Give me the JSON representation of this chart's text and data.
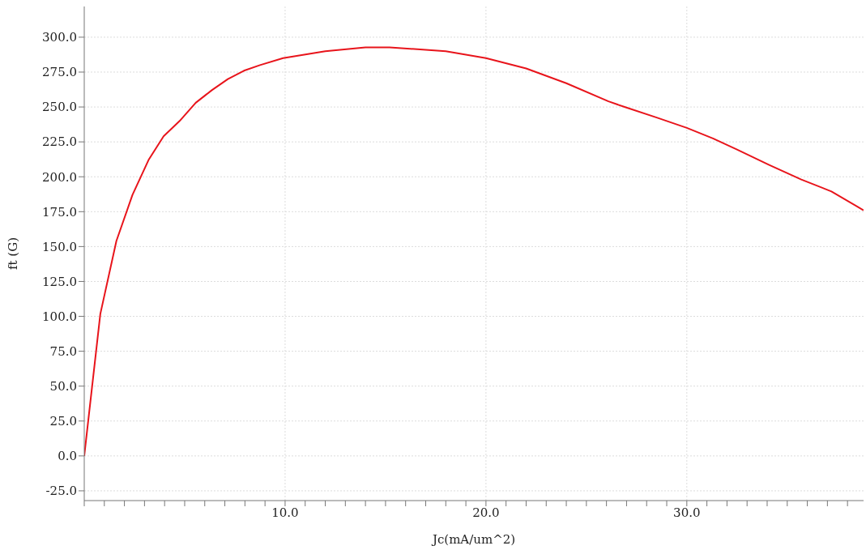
{
  "chart_data": {
    "type": "line",
    "xlabel": "Jc(mA/um^2)",
    "ylabel": "ft (G)",
    "x": [
      0,
      0.8,
      1.6,
      2.4,
      3.2,
      3.95,
      4.75,
      5.55,
      6.35,
      7.15,
      7.95,
      8.75,
      9.9,
      12,
      14,
      15.2,
      18,
      20,
      22,
      24,
      26.1,
      26.9,
      28.5,
      30,
      31.3,
      32.5,
      34.1,
      35.7,
      37.2,
      38.8
    ],
    "series": [
      {
        "color": "#e8141b",
        "values": [
          0,
          101.7,
          154,
          187,
          212,
          229,
          240,
          253,
          262,
          270,
          276,
          280,
          285,
          290,
          292.7,
          292.7,
          290,
          285,
          277.6,
          267,
          254,
          250,
          242.4,
          235,
          227.5,
          219.5,
          208.5,
          198,
          189.5,
          176
        ]
      }
    ],
    "xlim": [
      0,
      38.8
    ],
    "ylim": [
      -32,
      322
    ],
    "xticks": [
      {
        "value": 0,
        "label": null
      },
      {
        "value": 1,
        "label": null
      },
      {
        "value": 2,
        "label": null
      },
      {
        "value": 3,
        "label": null
      },
      {
        "value": 4,
        "label": null
      },
      {
        "value": 5,
        "label": null
      },
      {
        "value": 6,
        "label": null
      },
      {
        "value": 7,
        "label": null
      },
      {
        "value": 8,
        "label": null
      },
      {
        "value": 9,
        "label": null
      },
      {
        "value": 10,
        "label": "10.0"
      },
      {
        "value": 11,
        "label": null
      },
      {
        "value": 12,
        "label": null
      },
      {
        "value": 13,
        "label": null
      },
      {
        "value": 14,
        "label": null
      },
      {
        "value": 15,
        "label": null
      },
      {
        "value": 16,
        "label": null
      },
      {
        "value": 17,
        "label": null
      },
      {
        "value": 18,
        "label": null
      },
      {
        "value": 19,
        "label": null
      },
      {
        "value": 20,
        "label": "20.0"
      },
      {
        "value": 21,
        "label": null
      },
      {
        "value": 22,
        "label": null
      },
      {
        "value": 23,
        "label": null
      },
      {
        "value": 24,
        "label": null
      },
      {
        "value": 25,
        "label": null
      },
      {
        "value": 26,
        "label": null
      },
      {
        "value": 27,
        "label": null
      },
      {
        "value": 28,
        "label": null
      },
      {
        "value": 29,
        "label": null
      },
      {
        "value": 30,
        "label": "30.0"
      },
      {
        "value": 31,
        "label": null
      },
      {
        "value": 32,
        "label": null
      },
      {
        "value": 33,
        "label": null
      },
      {
        "value": 34,
        "label": null
      },
      {
        "value": 35,
        "label": null
      },
      {
        "value": 36,
        "label": null
      },
      {
        "value": 37,
        "label": null
      },
      {
        "value": 38,
        "label": null
      }
    ],
    "yticks": [
      {
        "value": -25,
        "label": "-25.0"
      },
      {
        "value": 0,
        "label": "0.0"
      },
      {
        "value": 25,
        "label": "25.0"
      },
      {
        "value": 50,
        "label": "50.0"
      },
      {
        "value": 75,
        "label": "75.0"
      },
      {
        "value": 100,
        "label": "100.0"
      },
      {
        "value": 125,
        "label": "125.0"
      },
      {
        "value": 150,
        "label": "150.0"
      },
      {
        "value": 175,
        "label": "175.0"
      },
      {
        "value": 200,
        "label": "200.0"
      },
      {
        "value": 225,
        "label": "225.0"
      },
      {
        "value": 250,
        "label": "250.0"
      },
      {
        "value": 275,
        "label": "275.0"
      },
      {
        "value": 300,
        "label": "300.0"
      }
    ],
    "grid": true,
    "marker": "none",
    "line_style": "solid",
    "legend": false
  }
}
